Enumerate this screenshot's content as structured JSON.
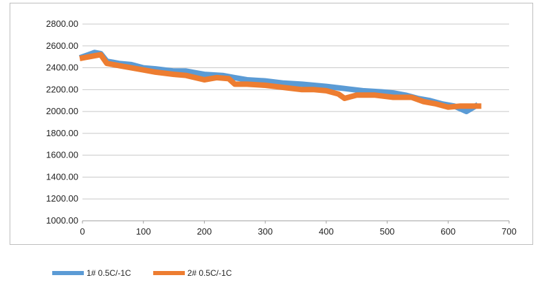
{
  "chart_data": {
    "type": "line",
    "title": "",
    "xlabel": "",
    "ylabel": "",
    "xlim": [
      0,
      700
    ],
    "ylim": [
      1000,
      2800
    ],
    "x_ticks": [
      "0",
      "100",
      "200",
      "300",
      "400",
      "500",
      "600",
      "700"
    ],
    "y_ticks": [
      "1000.00",
      "1200.00",
      "1400.00",
      "1600.00",
      "1800.00",
      "2000.00",
      "2200.00",
      "2400.00",
      "2600.00",
      "2800.00"
    ],
    "grid": "horizontal",
    "legend_position": "bottom",
    "series": [
      {
        "name": "1# 0.5C/-1C",
        "color": "#5b9bd5",
        "x": [
          0,
          10,
          20,
          30,
          40,
          50,
          60,
          80,
          100,
          120,
          150,
          170,
          200,
          230,
          250,
          270,
          300,
          330,
          360,
          380,
          400,
          430,
          460,
          490,
          510,
          530,
          550,
          570,
          590,
          610,
          630,
          645
        ],
        "y": [
          2500,
          2520,
          2540,
          2530,
          2460,
          2450,
          2440,
          2430,
          2400,
          2390,
          2370,
          2370,
          2340,
          2330,
          2310,
          2290,
          2280,
          2260,
          2250,
          2240,
          2230,
          2210,
          2190,
          2180,
          2170,
          2150,
          2120,
          2100,
          2070,
          2050,
          2000,
          2050
        ]
      },
      {
        "name": "2# 0.5C/-1C",
        "color": "#ed7d31",
        "x": [
          0,
          10,
          20,
          30,
          40,
          50,
          60,
          80,
          100,
          120,
          150,
          170,
          200,
          220,
          240,
          250,
          270,
          300,
          330,
          360,
          380,
          400,
          420,
          430,
          450,
          480,
          510,
          540,
          560,
          580,
          600,
          620,
          650
        ],
        "y": [
          2490,
          2500,
          2510,
          2520,
          2440,
          2430,
          2420,
          2400,
          2380,
          2360,
          2340,
          2330,
          2290,
          2310,
          2300,
          2250,
          2250,
          2240,
          2220,
          2200,
          2200,
          2190,
          2160,
          2120,
          2150,
          2150,
          2130,
          2130,
          2090,
          2070,
          2040,
          2050,
          2050
        ]
      }
    ]
  }
}
